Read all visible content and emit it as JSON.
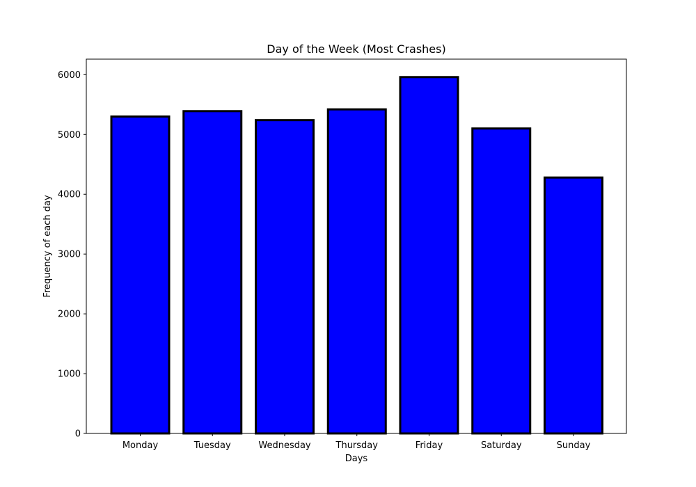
{
  "chart_data": {
    "type": "bar",
    "title": "Day of the Week (Most Crashes)",
    "xlabel": "Days",
    "ylabel": "Frequency of each day",
    "categories": [
      "Monday",
      "Tuesday",
      "Wednesday",
      "Thursday",
      "Friday",
      "Saturday",
      "Sunday"
    ],
    "values": [
      5300,
      5390,
      5240,
      5420,
      5960,
      5100,
      4280
    ],
    "yticks": [
      0,
      1000,
      2000,
      3000,
      4000,
      5000,
      6000
    ],
    "ylim": [
      0,
      6260
    ],
    "grid": false,
    "legend": "none",
    "bar_color": "#0000ff",
    "edge_color": "#000000"
  }
}
